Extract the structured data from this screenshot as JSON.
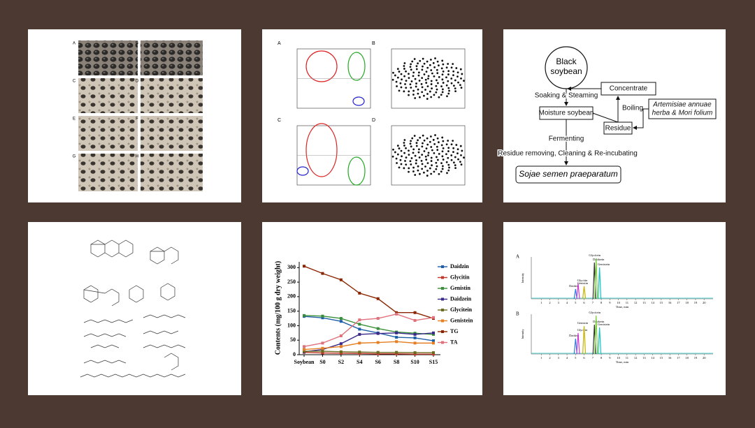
{
  "photos": {
    "letters": [
      "A",
      "B",
      "C",
      "D",
      "E",
      "F",
      "G",
      "H"
    ]
  },
  "pca": {
    "letters": [
      "A",
      "B",
      "C",
      "D"
    ]
  },
  "flowchart": {
    "nodes": [
      {
        "lines": [
          "Black",
          "soybean"
        ]
      },
      {
        "label": "Soaking & Steaming"
      },
      {
        "label": "Concentrate"
      },
      {
        "label": "Boiling"
      },
      {
        "lines": [
          "Artemisiae annuae",
          "herba & Mori folium"
        ]
      },
      {
        "label": "Moisture soybean"
      },
      {
        "label": "Residue"
      },
      {
        "label": "Fermenting"
      },
      {
        "label": "Residue removing, Cleaning & Re-incubating"
      },
      {
        "label": "Sojae semen praeparatum"
      }
    ]
  },
  "chart_data": {
    "type": "line",
    "y_label": "Contents (mg/100 g dry weight)",
    "categories": [
      "Soybean",
      "S0",
      "S2",
      "S4",
      "S6",
      "S8",
      "S10",
      "S15"
    ],
    "ylim": [
      0,
      320
    ],
    "yticks": [
      0,
      50,
      100,
      150,
      200,
      250,
      300
    ],
    "series": [
      {
        "name": "Daidzin",
        "color": "#1f5fa8",
        "values": [
          132,
          127,
          115,
          88,
          75,
          60,
          58,
          48
        ]
      },
      {
        "name": "Glycitin",
        "color": "#c0392b",
        "values": [
          8,
          6,
          5,
          4,
          3,
          3,
          2,
          2
        ]
      },
      {
        "name": "Genistin",
        "color": "#3a8f3a",
        "values": [
          135,
          133,
          125,
          105,
          90,
          78,
          74,
          70
        ]
      },
      {
        "name": "Daidzein",
        "color": "#3b2a8a",
        "values": [
          10,
          18,
          38,
          70,
          73,
          75,
          70,
          75
        ]
      },
      {
        "name": "Glycitein",
        "color": "#6b6b1f",
        "values": [
          12,
          12,
          10,
          9,
          8,
          8,
          7,
          7
        ]
      },
      {
        "name": "Genistein",
        "color": "#e67e22",
        "values": [
          18,
          22,
          28,
          40,
          42,
          45,
          40,
          40
        ]
      },
      {
        "name": "TG",
        "color": "#8b2500",
        "values": [
          305,
          280,
          258,
          212,
          193,
          145,
          145,
          125
        ]
      },
      {
        "name": "TA",
        "color": "#e0707a",
        "values": [
          28,
          40,
          65,
          120,
          125,
          140,
          118,
          128
        ]
      }
    ]
  },
  "chromatogram": {
    "x_label": "Time, min",
    "y_label": "Intensity",
    "xticks": [
      1,
      2,
      3,
      4,
      5,
      6,
      7,
      8,
      9,
      10,
      11,
      12,
      13,
      14,
      15,
      16,
      17,
      18,
      19,
      20
    ],
    "panels": [
      {
        "label": "A",
        "peaks": [
          "Daidzin",
          "Glycitin",
          "Genistin",
          "Daidzein",
          "Glycitein",
          "Genistein"
        ]
      },
      {
        "label": "B",
        "peaks": [
          "Daidzin",
          "Glycitin",
          "Genistin",
          "Daidzein",
          "Glycitein",
          "Genistein"
        ]
      }
    ]
  }
}
